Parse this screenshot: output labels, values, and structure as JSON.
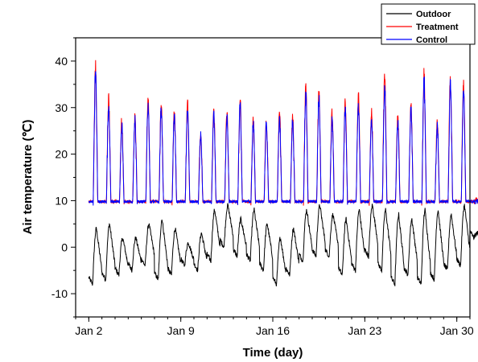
{
  "chart_data": {
    "type": "line",
    "title": "",
    "xlabel": "Time (day)",
    "ylabel": "Air temperature (℃)",
    "xlim": [
      "2024-01-01",
      "2024-01-31"
    ],
    "ylim": [
      -15,
      45
    ],
    "x_ticks": [
      {
        "date": "2024-01-02",
        "label": "Jan 2"
      },
      {
        "date": "2024-01-09",
        "label": "Jan 9"
      },
      {
        "date": "2024-01-16",
        "label": "Jan 16"
      },
      {
        "date": "2024-01-23",
        "label": "Jan 23"
      },
      {
        "date": "2024-01-30",
        "label": "Jan 30"
      }
    ],
    "y_ticks": [
      -10,
      0,
      10,
      20,
      30,
      40
    ],
    "grid": false,
    "legend_position": "top-right",
    "series": [
      {
        "name": "Outdoor",
        "color": "#000000",
        "daily": [
          {
            "date": "2024-01-02",
            "min": -8,
            "max": 4
          },
          {
            "date": "2024-01-03",
            "min": -7,
            "max": 5
          },
          {
            "date": "2024-01-04",
            "min": -6,
            "max": 2
          },
          {
            "date": "2024-01-05",
            "min": -5,
            "max": 2
          },
          {
            "date": "2024-01-06",
            "min": -4,
            "max": 5
          },
          {
            "date": "2024-01-07",
            "min": -7,
            "max": 6
          },
          {
            "date": "2024-01-08",
            "min": -6,
            "max": 4
          },
          {
            "date": "2024-01-09",
            "min": -4,
            "max": 1
          },
          {
            "date": "2024-01-10",
            "min": -5,
            "max": 3
          },
          {
            "date": "2024-01-11",
            "min": -3,
            "max": 8
          },
          {
            "date": "2024-01-12",
            "min": 0,
            "max": 9
          },
          {
            "date": "2024-01-13",
            "min": -2,
            "max": 6
          },
          {
            "date": "2024-01-14",
            "min": -3,
            "max": 8
          },
          {
            "date": "2024-01-15",
            "min": -5,
            "max": 5
          },
          {
            "date": "2024-01-16",
            "min": -8,
            "max": 2
          },
          {
            "date": "2024-01-17",
            "min": -6,
            "max": 4
          },
          {
            "date": "2024-01-18",
            "min": -3,
            "max": 8
          },
          {
            "date": "2024-01-19",
            "min": -2,
            "max": 9
          },
          {
            "date": "2024-01-20",
            "min": -2,
            "max": 7
          },
          {
            "date": "2024-01-21",
            "min": -6,
            "max": 6
          },
          {
            "date": "2024-01-22",
            "min": -5,
            "max": 8
          },
          {
            "date": "2024-01-23",
            "min": -2,
            "max": 9
          },
          {
            "date": "2024-01-24",
            "min": -5,
            "max": 8
          },
          {
            "date": "2024-01-25",
            "min": -8,
            "max": 7
          },
          {
            "date": "2024-01-26",
            "min": -6,
            "max": 6
          },
          {
            "date": "2024-01-27",
            "min": -8,
            "max": 8
          },
          {
            "date": "2024-01-28",
            "min": -7,
            "max": 8
          },
          {
            "date": "2024-01-29",
            "min": -5,
            "max": 7
          },
          {
            "date": "2024-01-30",
            "min": -4,
            "max": 9
          },
          {
            "date": "2024-01-31",
            "min": 2,
            "max": 3
          }
        ]
      },
      {
        "name": "Treatment",
        "color": "#ff0000",
        "daily": [
          {
            "date": "2024-01-02",
            "min": 9.5,
            "max": 40.5
          },
          {
            "date": "2024-01-03",
            "min": 9.5,
            "max": 33
          },
          {
            "date": "2024-01-04",
            "min": 9.5,
            "max": 28
          },
          {
            "date": "2024-01-05",
            "min": 9.5,
            "max": 29.5
          },
          {
            "date": "2024-01-06",
            "min": 9.5,
            "max": 33.5
          },
          {
            "date": "2024-01-07",
            "min": 9.5,
            "max": 32
          },
          {
            "date": "2024-01-08",
            "min": 9.5,
            "max": 30.5
          },
          {
            "date": "2024-01-09",
            "min": 9.5,
            "max": 32
          },
          {
            "date": "2024-01-10",
            "min": 9.5,
            "max": 25.5
          },
          {
            "date": "2024-01-11",
            "min": 9.5,
            "max": 30.5
          },
          {
            "date": "2024-01-12",
            "min": 9.5,
            "max": 30.5
          },
          {
            "date": "2024-01-13",
            "min": 9.5,
            "max": 33
          },
          {
            "date": "2024-01-14",
            "min": 9.5,
            "max": 28.5
          },
          {
            "date": "2024-01-15",
            "min": 9.5,
            "max": 28.5
          },
          {
            "date": "2024-01-16",
            "min": 9.5,
            "max": 30
          },
          {
            "date": "2024-01-17",
            "min": 9.5,
            "max": 29
          },
          {
            "date": "2024-01-18",
            "min": 9.5,
            "max": 36
          },
          {
            "date": "2024-01-19",
            "min": 9.5,
            "max": 35
          },
          {
            "date": "2024-01-20",
            "min": 9.5,
            "max": 30
          },
          {
            "date": "2024-01-21",
            "min": 9.5,
            "max": 32
          },
          {
            "date": "2024-01-22",
            "min": 9.5,
            "max": 33.5
          },
          {
            "date": "2024-01-23",
            "min": 9.5,
            "max": 30
          },
          {
            "date": "2024-01-24",
            "min": 9.5,
            "max": 38.5
          },
          {
            "date": "2024-01-25",
            "min": 9.5,
            "max": 29
          },
          {
            "date": "2024-01-26",
            "min": 9.5,
            "max": 32
          },
          {
            "date": "2024-01-27",
            "min": 9.5,
            "max": 38.5
          },
          {
            "date": "2024-01-28",
            "min": 9.5,
            "max": 28
          },
          {
            "date": "2024-01-29",
            "min": 9.5,
            "max": 38
          },
          {
            "date": "2024-01-30",
            "min": 9.5,
            "max": 37
          },
          {
            "date": "2024-01-31",
            "min": 9.5,
            "max": 10.5
          }
        ]
      },
      {
        "name": "Control",
        "color": "#0000ff",
        "daily": [
          {
            "date": "2024-01-02",
            "min": 9.5,
            "max": 40
          },
          {
            "date": "2024-01-03",
            "min": 9.5,
            "max": 31.5
          },
          {
            "date": "2024-01-04",
            "min": 9.5,
            "max": 27.5
          },
          {
            "date": "2024-01-05",
            "min": 9.5,
            "max": 28
          },
          {
            "date": "2024-01-06",
            "min": 9.5,
            "max": 32
          },
          {
            "date": "2024-01-07",
            "min": 9.5,
            "max": 31
          },
          {
            "date": "2024-01-08",
            "min": 9.5,
            "max": 29.5
          },
          {
            "date": "2024-01-09",
            "min": 9.5,
            "max": 31.5
          },
          {
            "date": "2024-01-10",
            "min": 9.5,
            "max": 25
          },
          {
            "date": "2024-01-11",
            "min": 9.5,
            "max": 29.5
          },
          {
            "date": "2024-01-12",
            "min": 9.5,
            "max": 29.5
          },
          {
            "date": "2024-01-13",
            "min": 9.5,
            "max": 32
          },
          {
            "date": "2024-01-14",
            "min": 9.5,
            "max": 28
          },
          {
            "date": "2024-01-15",
            "min": 9.5,
            "max": 28
          },
          {
            "date": "2024-01-16",
            "min": 9.5,
            "max": 29
          },
          {
            "date": "2024-01-17",
            "min": 9.5,
            "max": 28
          },
          {
            "date": "2024-01-18",
            "min": 9.5,
            "max": 34.5
          },
          {
            "date": "2024-01-19",
            "min": 9.5,
            "max": 33.5
          },
          {
            "date": "2024-01-20",
            "min": 9.5,
            "max": 28.5
          },
          {
            "date": "2024-01-21",
            "min": 9.5,
            "max": 31
          },
          {
            "date": "2024-01-22",
            "min": 9.5,
            "max": 32
          },
          {
            "date": "2024-01-23",
            "min": 9.5,
            "max": 28.5
          },
          {
            "date": "2024-01-24",
            "min": 9.5,
            "max": 36.5
          },
          {
            "date": "2024-01-25",
            "min": 9.5,
            "max": 28
          },
          {
            "date": "2024-01-26",
            "min": 9.5,
            "max": 31
          },
          {
            "date": "2024-01-27",
            "min": 9.5,
            "max": 37
          },
          {
            "date": "2024-01-28",
            "min": 9.5,
            "max": 27
          },
          {
            "date": "2024-01-29",
            "min": 9.5,
            "max": 36.5
          },
          {
            "date": "2024-01-30",
            "min": 9.5,
            "max": 35.5
          },
          {
            "date": "2024-01-31",
            "min": 9.5,
            "max": 10
          }
        ]
      }
    ]
  }
}
